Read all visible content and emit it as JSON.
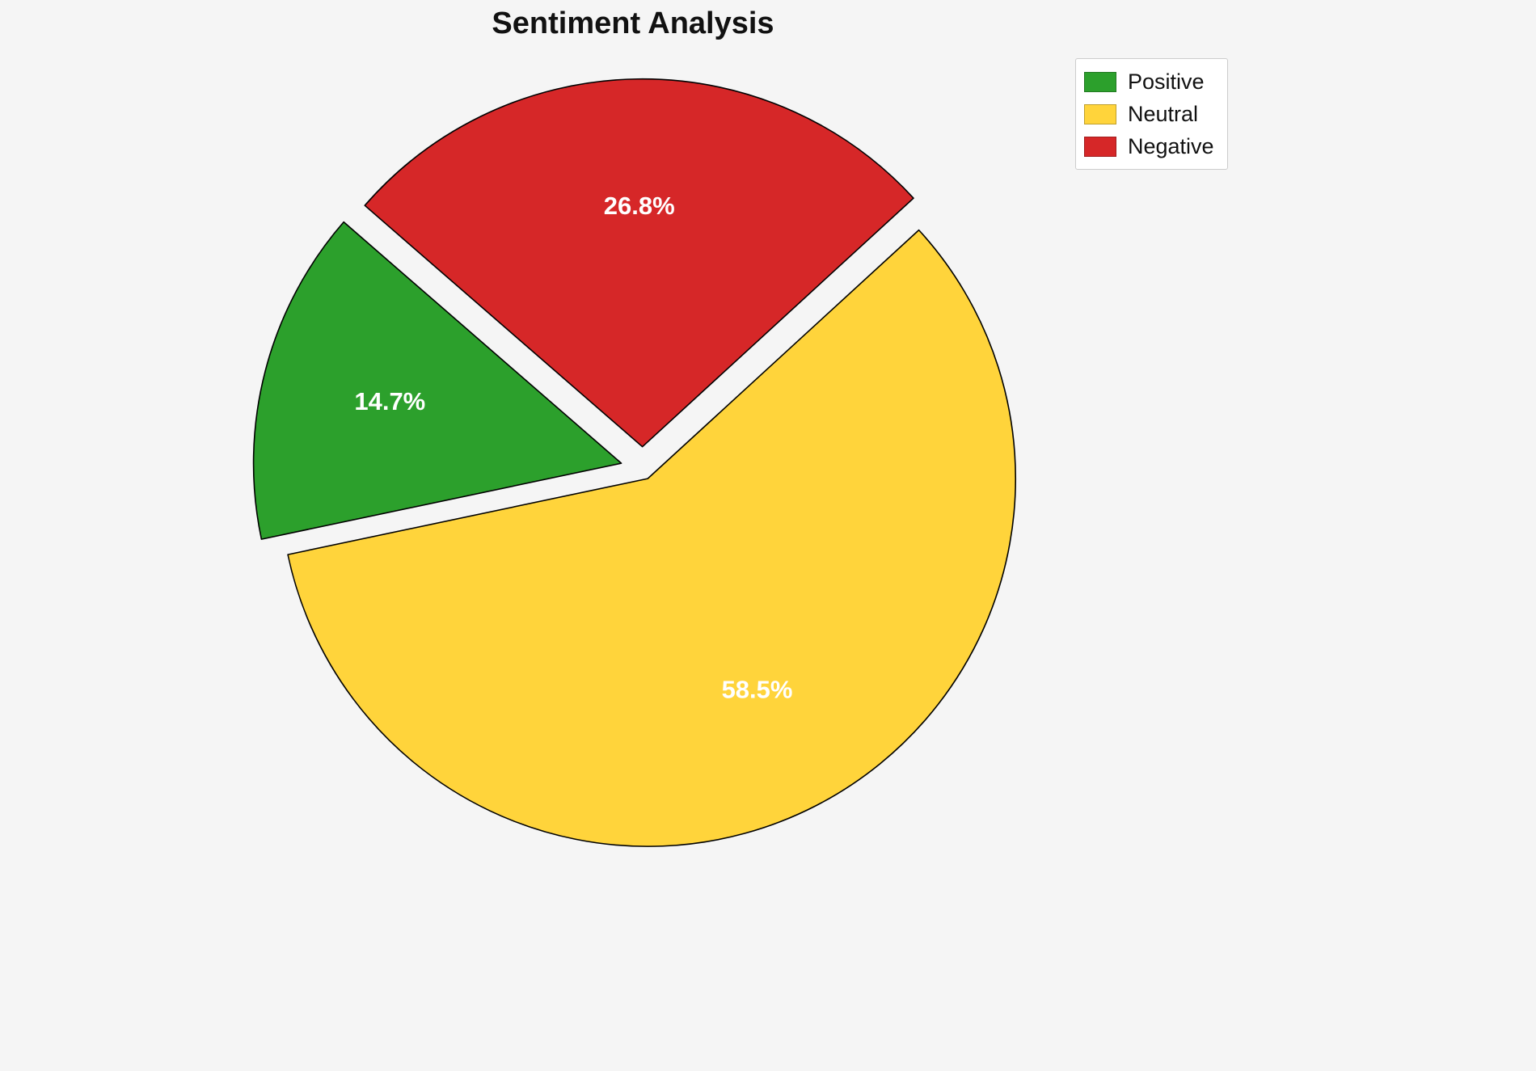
{
  "background_color": "#f5f5f5",
  "chart_data": {
    "type": "pie",
    "title": "Sentiment Analysis",
    "labels": [
      "Positive",
      "Neutral",
      "Negative"
    ],
    "values": [
      14.7,
      58.5,
      26.8
    ],
    "pct_labels": [
      "14.7%",
      "58.5%",
      "26.8%"
    ],
    "colors": [
      "#2ca02c",
      "#ffd43b",
      "#d62728"
    ],
    "edge_color": "#000000",
    "label_color": "#ffffff",
    "start_angle": 139,
    "explode": [
      0.06,
      0.03,
      0.06
    ],
    "pct_distance": 0.65,
    "legend": {
      "position": "upper right",
      "labels": [
        "Positive",
        "Neutral",
        "Negative"
      ]
    }
  }
}
